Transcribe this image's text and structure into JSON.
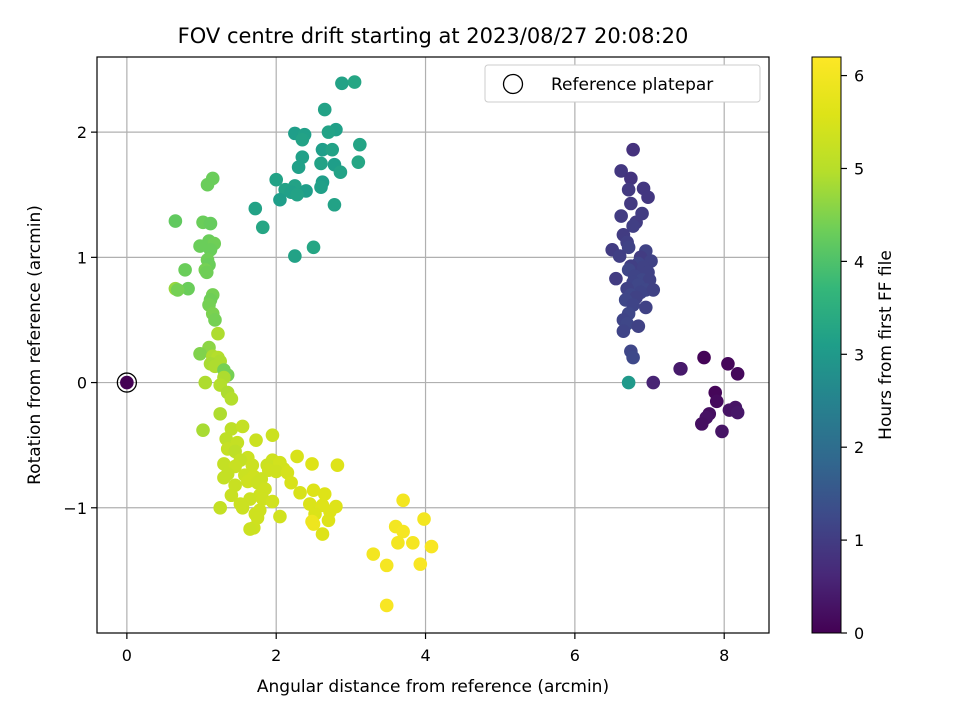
{
  "chart_data": {
    "type": "scatter",
    "title": "FOV centre drift starting at 2023/08/27 20:08:20",
    "xlabel": "Angular distance from reference (arcmin)",
    "ylabel": "Rotation from reference (arcmin)",
    "xlim": [
      -0.4,
      8.6
    ],
    "ylim": [
      -2.0,
      2.6
    ],
    "xticks": [
      0,
      2,
      4,
      6,
      8
    ],
    "yticks": [
      -1,
      0,
      1,
      2
    ],
    "ytick_labels": [
      "−1",
      "0",
      "1",
      "2"
    ],
    "grid": true,
    "legend": {
      "label": "Reference platepar",
      "placement": "top-right",
      "marker": "hollow circle"
    },
    "reference_point": {
      "x": 0,
      "y": 0
    },
    "colorbar": {
      "label": "Hours from first FF file",
      "range": [
        0,
        6.2
      ],
      "ticks": [
        0,
        1,
        2,
        3,
        4,
        5,
        6
      ],
      "colormap": "viridis"
    },
    "points": [
      {
        "x": 7.73,
        "y": 0.2,
        "c": 0.05
      },
      {
        "x": 8.05,
        "y": 0.15,
        "c": 0.1
      },
      {
        "x": 8.18,
        "y": 0.07,
        "c": 0.12
      },
      {
        "x": 7.88,
        "y": -0.08,
        "c": 0.08
      },
      {
        "x": 7.9,
        "y": -0.15,
        "c": 0.15
      },
      {
        "x": 7.8,
        "y": -0.25,
        "c": 0.2
      },
      {
        "x": 7.76,
        "y": -0.28,
        "c": 0.25
      },
      {
        "x": 7.7,
        "y": -0.33,
        "c": 0.22
      },
      {
        "x": 7.97,
        "y": -0.39,
        "c": 0.3
      },
      {
        "x": 8.07,
        "y": -0.22,
        "c": 0.28
      },
      {
        "x": 8.15,
        "y": -0.2,
        "c": 0.3
      },
      {
        "x": 8.18,
        "y": -0.24,
        "c": 0.35
      },
      {
        "x": 7.42,
        "y": 0.11,
        "c": 0.35
      },
      {
        "x": 7.41,
        "y": 0.11,
        "c": 0.4
      },
      {
        "x": 7.05,
        "y": 0.0,
        "c": 0.55
      },
      {
        "x": 6.78,
        "y": 1.86,
        "c": 0.8
      },
      {
        "x": 6.62,
        "y": 1.69,
        "c": 0.9
      },
      {
        "x": 6.75,
        "y": 1.63,
        "c": 0.85
      },
      {
        "x": 6.92,
        "y": 1.55,
        "c": 0.9
      },
      {
        "x": 6.72,
        "y": 1.54,
        "c": 0.95
      },
      {
        "x": 6.98,
        "y": 1.48,
        "c": 0.9
      },
      {
        "x": 6.75,
        "y": 1.43,
        "c": 0.95
      },
      {
        "x": 6.9,
        "y": 1.35,
        "c": 1.0
      },
      {
        "x": 6.62,
        "y": 1.33,
        "c": 1.0
      },
      {
        "x": 6.82,
        "y": 1.28,
        "c": 1.0
      },
      {
        "x": 6.78,
        "y": 1.25,
        "c": 1.05
      },
      {
        "x": 6.65,
        "y": 1.18,
        "c": 1.0
      },
      {
        "x": 6.7,
        "y": 1.12,
        "c": 1.05
      },
      {
        "x": 6.72,
        "y": 1.08,
        "c": 1.1
      },
      {
        "x": 6.95,
        "y": 1.05,
        "c": 1.1
      },
      {
        "x": 6.5,
        "y": 1.06,
        "c": 1.0
      },
      {
        "x": 6.6,
        "y": 1.01,
        "c": 1.05
      },
      {
        "x": 6.88,
        "y": 1.0,
        "c": 1.0
      },
      {
        "x": 7.02,
        "y": 0.97,
        "c": 1.1
      },
      {
        "x": 6.85,
        "y": 0.95,
        "c": 1.15
      },
      {
        "x": 6.75,
        "y": 0.93,
        "c": 1.05
      },
      {
        "x": 6.92,
        "y": 0.92,
        "c": 1.1
      },
      {
        "x": 6.72,
        "y": 0.9,
        "c": 1.2
      },
      {
        "x": 6.98,
        "y": 0.88,
        "c": 1.1
      },
      {
        "x": 6.8,
        "y": 0.85,
        "c": 1.15
      },
      {
        "x": 6.55,
        "y": 0.83,
        "c": 1.0
      },
      {
        "x": 6.9,
        "y": 0.82,
        "c": 1.2
      },
      {
        "x": 7.0,
        "y": 0.82,
        "c": 1.1
      },
      {
        "x": 6.78,
        "y": 0.8,
        "c": 1.15
      },
      {
        "x": 6.85,
        "y": 0.78,
        "c": 1.2
      },
      {
        "x": 6.7,
        "y": 0.75,
        "c": 1.1
      },
      {
        "x": 6.95,
        "y": 0.74,
        "c": 1.2
      },
      {
        "x": 7.05,
        "y": 0.74,
        "c": 1.1
      },
      {
        "x": 6.88,
        "y": 0.72,
        "c": 1.15
      },
      {
        "x": 6.75,
        "y": 0.7,
        "c": 1.2
      },
      {
        "x": 6.82,
        "y": 0.68,
        "c": 1.1
      },
      {
        "x": 6.68,
        "y": 0.66,
        "c": 1.2
      },
      {
        "x": 6.78,
        "y": 0.62,
        "c": 1.15
      },
      {
        "x": 6.95,
        "y": 0.6,
        "c": 1.1
      },
      {
        "x": 6.72,
        "y": 0.55,
        "c": 1.2
      },
      {
        "x": 6.65,
        "y": 0.5,
        "c": 1.15
      },
      {
        "x": 6.7,
        "y": 0.47,
        "c": 1.2
      },
      {
        "x": 6.85,
        "y": 0.45,
        "c": 1.1
      },
      {
        "x": 6.65,
        "y": 0.41,
        "c": 1.15
      },
      {
        "x": 6.75,
        "y": 0.25,
        "c": 1.2
      },
      {
        "x": 6.78,
        "y": 0.2,
        "c": 1.25
      },
      {
        "x": 6.72,
        "y": 0.0,
        "c": 3.0
      },
      {
        "x": 2.88,
        "y": 2.39,
        "c": 3.2
      },
      {
        "x": 3.05,
        "y": 2.4,
        "c": 3.3
      },
      {
        "x": 2.65,
        "y": 2.18,
        "c": 3.2
      },
      {
        "x": 2.8,
        "y": 2.02,
        "c": 3.15
      },
      {
        "x": 2.7,
        "y": 2.0,
        "c": 3.2
      },
      {
        "x": 2.25,
        "y": 1.99,
        "c": 3.1
      },
      {
        "x": 2.38,
        "y": 1.98,
        "c": 3.15
      },
      {
        "x": 2.35,
        "y": 1.94,
        "c": 3.2
      },
      {
        "x": 3.12,
        "y": 1.9,
        "c": 3.25
      },
      {
        "x": 2.62,
        "y": 1.86,
        "c": 3.1
      },
      {
        "x": 2.75,
        "y": 1.86,
        "c": 3.2
      },
      {
        "x": 2.35,
        "y": 1.8,
        "c": 3.15
      },
      {
        "x": 3.1,
        "y": 1.76,
        "c": 3.3
      },
      {
        "x": 2.6,
        "y": 1.75,
        "c": 3.2
      },
      {
        "x": 2.78,
        "y": 1.74,
        "c": 3.1
      },
      {
        "x": 2.3,
        "y": 1.72,
        "c": 3.15
      },
      {
        "x": 2.86,
        "y": 1.68,
        "c": 3.2
      },
      {
        "x": 2.0,
        "y": 1.62,
        "c": 3.2
      },
      {
        "x": 2.62,
        "y": 1.6,
        "c": 3.1
      },
      {
        "x": 2.25,
        "y": 1.57,
        "c": 3.2
      },
      {
        "x": 2.6,
        "y": 1.56,
        "c": 3.15
      },
      {
        "x": 2.12,
        "y": 1.54,
        "c": 3.2
      },
      {
        "x": 2.2,
        "y": 1.52,
        "c": 3.15
      },
      {
        "x": 2.4,
        "y": 1.53,
        "c": 3.1
      },
      {
        "x": 2.28,
        "y": 1.5,
        "c": 3.2
      },
      {
        "x": 2.05,
        "y": 1.46,
        "c": 3.1
      },
      {
        "x": 2.78,
        "y": 1.42,
        "c": 3.2
      },
      {
        "x": 1.72,
        "y": 1.39,
        "c": 3.2
      },
      {
        "x": 1.82,
        "y": 1.24,
        "c": 3.3
      },
      {
        "x": 2.5,
        "y": 1.08,
        "c": 3.3
      },
      {
        "x": 2.25,
        "y": 1.01,
        "c": 3.2
      },
      {
        "x": 1.15,
        "y": 1.63,
        "c": 4.3
      },
      {
        "x": 1.08,
        "y": 1.58,
        "c": 4.3
      },
      {
        "x": 0.65,
        "y": 1.29,
        "c": 4.2
      },
      {
        "x": 1.02,
        "y": 1.28,
        "c": 4.3
      },
      {
        "x": 1.12,
        "y": 1.27,
        "c": 4.25
      },
      {
        "x": 1.1,
        "y": 1.13,
        "c": 4.3
      },
      {
        "x": 1.17,
        "y": 1.11,
        "c": 4.35
      },
      {
        "x": 0.98,
        "y": 1.09,
        "c": 4.3
      },
      {
        "x": 1.12,
        "y": 1.06,
        "c": 4.3
      },
      {
        "x": 1.08,
        "y": 0.98,
        "c": 4.35
      },
      {
        "x": 1.1,
        "y": 0.94,
        "c": 4.3
      },
      {
        "x": 1.05,
        "y": 0.9,
        "c": 4.4
      },
      {
        "x": 0.78,
        "y": 0.9,
        "c": 4.3
      },
      {
        "x": 1.07,
        "y": 0.88,
        "c": 4.35
      },
      {
        "x": 0.82,
        "y": 0.75,
        "c": 4.3
      },
      {
        "x": 0.65,
        "y": 0.75,
        "c": 4.7
      },
      {
        "x": 0.68,
        "y": 0.74,
        "c": 4.4
      },
      {
        "x": 1.15,
        "y": 0.7,
        "c": 4.4
      },
      {
        "x": 1.12,
        "y": 0.66,
        "c": 4.35
      },
      {
        "x": 1.1,
        "y": 0.62,
        "c": 4.4
      },
      {
        "x": 1.15,
        "y": 0.55,
        "c": 4.45
      },
      {
        "x": 1.18,
        "y": 0.5,
        "c": 4.4
      },
      {
        "x": 1.22,
        "y": 0.39,
        "c": 4.9
      },
      {
        "x": 1.1,
        "y": 0.28,
        "c": 4.6
      },
      {
        "x": 0.98,
        "y": 0.23,
        "c": 4.5
      },
      {
        "x": 1.15,
        "y": 0.21,
        "c": 4.9
      },
      {
        "x": 1.22,
        "y": 0.2,
        "c": 4.95
      },
      {
        "x": 1.25,
        "y": 0.17,
        "c": 4.9
      },
      {
        "x": 1.12,
        "y": 0.15,
        "c": 4.85
      },
      {
        "x": 1.18,
        "y": 0.13,
        "c": 4.9
      },
      {
        "x": 1.3,
        "y": 0.1,
        "c": 4.4
      },
      {
        "x": 1.35,
        "y": 0.06,
        "c": 4.4
      },
      {
        "x": 1.3,
        "y": 0.04,
        "c": 4.9
      },
      {
        "x": 1.05,
        "y": 0.0,
        "c": 4.9
      },
      {
        "x": 1.25,
        "y": -0.02,
        "c": 4.95
      },
      {
        "x": 1.35,
        "y": -0.08,
        "c": 4.9
      },
      {
        "x": 1.4,
        "y": -0.13,
        "c": 4.95
      },
      {
        "x": 1.25,
        "y": -0.25,
        "c": 4.9
      },
      {
        "x": 1.02,
        "y": -0.38,
        "c": 4.85
      },
      {
        "x": 1.4,
        "y": -0.37,
        "c": 5.1
      },
      {
        "x": 1.55,
        "y": -0.35,
        "c": 5.2
      },
      {
        "x": 1.95,
        "y": -0.42,
        "c": 5.3
      },
      {
        "x": 1.73,
        "y": -0.46,
        "c": 5.3
      },
      {
        "x": 1.33,
        "y": -0.45,
        "c": 5.1
      },
      {
        "x": 1.48,
        "y": -0.48,
        "c": 5.2
      },
      {
        "x": 1.35,
        "y": -0.53,
        "c": 5.2
      },
      {
        "x": 1.45,
        "y": -0.55,
        "c": 5.1
      },
      {
        "x": 1.62,
        "y": -0.6,
        "c": 5.3
      },
      {
        "x": 2.28,
        "y": -0.59,
        "c": 5.5
      },
      {
        "x": 1.52,
        "y": -0.62,
        "c": 5.2
      },
      {
        "x": 1.95,
        "y": -0.62,
        "c": 5.35
      },
      {
        "x": 1.88,
        "y": -0.66,
        "c": 5.3
      },
      {
        "x": 2.05,
        "y": -0.64,
        "c": 5.4
      },
      {
        "x": 1.3,
        "y": -0.65,
        "c": 5.2
      },
      {
        "x": 1.45,
        "y": -0.67,
        "c": 5.25
      },
      {
        "x": 1.68,
        "y": -0.66,
        "c": 5.3
      },
      {
        "x": 2.48,
        "y": -0.65,
        "c": 5.6
      },
      {
        "x": 2.82,
        "y": -0.66,
        "c": 5.6
      },
      {
        "x": 1.9,
        "y": -0.7,
        "c": 5.35
      },
      {
        "x": 2.1,
        "y": -0.69,
        "c": 5.4
      },
      {
        "x": 2.0,
        "y": -0.71,
        "c": 5.35
      },
      {
        "x": 2.15,
        "y": -0.72,
        "c": 5.45
      },
      {
        "x": 1.35,
        "y": -0.73,
        "c": 5.2
      },
      {
        "x": 1.58,
        "y": -0.74,
        "c": 5.3
      },
      {
        "x": 1.7,
        "y": -0.75,
        "c": 5.35
      },
      {
        "x": 1.8,
        "y": -0.77,
        "c": 5.3
      },
      {
        "x": 1.3,
        "y": -0.76,
        "c": 5.2
      },
      {
        "x": 1.62,
        "y": -0.79,
        "c": 5.35
      },
      {
        "x": 1.75,
        "y": -0.8,
        "c": 5.3
      },
      {
        "x": 2.2,
        "y": -0.8,
        "c": 5.5
      },
      {
        "x": 1.45,
        "y": -0.82,
        "c": 5.25
      },
      {
        "x": 1.85,
        "y": -0.85,
        "c": 5.35
      },
      {
        "x": 2.5,
        "y": -0.86,
        "c": 5.6
      },
      {
        "x": 2.32,
        "y": -0.88,
        "c": 5.5
      },
      {
        "x": 2.65,
        "y": -0.89,
        "c": 5.6
      },
      {
        "x": 1.4,
        "y": -0.9,
        "c": 5.25
      },
      {
        "x": 1.78,
        "y": -0.9,
        "c": 5.35
      },
      {
        "x": 1.65,
        "y": -0.93,
        "c": 5.3
      },
      {
        "x": 1.82,
        "y": -0.93,
        "c": 5.35
      },
      {
        "x": 1.95,
        "y": -0.95,
        "c": 5.4
      },
      {
        "x": 1.52,
        "y": -0.97,
        "c": 5.3
      },
      {
        "x": 2.45,
        "y": -0.97,
        "c": 5.55
      },
      {
        "x": 2.62,
        "y": -0.98,
        "c": 5.6
      },
      {
        "x": 2.8,
        "y": -0.99,
        "c": 5.6
      },
      {
        "x": 1.25,
        "y": -1.0,
        "c": 5.2
      },
      {
        "x": 1.55,
        "y": -1.0,
        "c": 5.3
      },
      {
        "x": 1.78,
        "y": -1.02,
        "c": 5.35
      },
      {
        "x": 2.72,
        "y": -1.03,
        "c": 5.6
      },
      {
        "x": 2.52,
        "y": -1.05,
        "c": 5.55
      },
      {
        "x": 1.72,
        "y": -1.05,
        "c": 5.35
      },
      {
        "x": 2.05,
        "y": -1.07,
        "c": 5.4
      },
      {
        "x": 1.75,
        "y": -1.08,
        "c": 5.35
      },
      {
        "x": 2.7,
        "y": -1.1,
        "c": 5.6
      },
      {
        "x": 2.48,
        "y": -1.11,
        "c": 5.9
      },
      {
        "x": 2.5,
        "y": -1.13,
        "c": 5.9
      },
      {
        "x": 1.7,
        "y": -1.16,
        "c": 5.35
      },
      {
        "x": 1.65,
        "y": -1.17,
        "c": 5.3
      },
      {
        "x": 2.62,
        "y": -1.21,
        "c": 5.6
      },
      {
        "x": 3.7,
        "y": -0.94,
        "c": 6.0
      },
      {
        "x": 3.98,
        "y": -1.09,
        "c": 6.0
      },
      {
        "x": 3.6,
        "y": -1.15,
        "c": 6.0
      },
      {
        "x": 3.7,
        "y": -1.19,
        "c": 6.05
      },
      {
        "x": 3.63,
        "y": -1.28,
        "c": 6.0
      },
      {
        "x": 3.83,
        "y": -1.28,
        "c": 6.05
      },
      {
        "x": 4.08,
        "y": -1.31,
        "c": 6.1
      },
      {
        "x": 3.3,
        "y": -1.37,
        "c": 6.0
      },
      {
        "x": 3.48,
        "y": -1.46,
        "c": 6.05
      },
      {
        "x": 3.93,
        "y": -1.45,
        "c": 6.1
      },
      {
        "x": 3.48,
        "y": -1.78,
        "c": 6.1
      },
      {
        "x": 0.0,
        "y": 0.0,
        "c": 0.0
      }
    ]
  }
}
